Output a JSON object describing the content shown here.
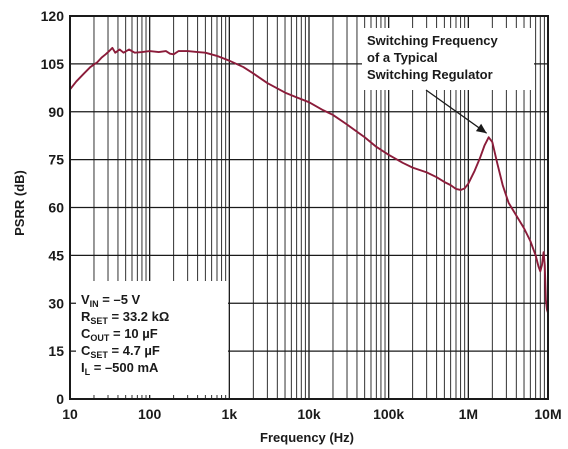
{
  "chart_data": {
    "type": "line",
    "title": "",
    "xlabel": "Frequency (Hz)",
    "ylabel": "PSRR (dB)",
    "xscale": "log",
    "xlim": [
      10,
      10000000
    ],
    "ylim": [
      0,
      120
    ],
    "grid": true,
    "x_ticks": [
      {
        "value": 10,
        "label": "10"
      },
      {
        "value": 100,
        "label": "100"
      },
      {
        "value": 1000,
        "label": "1k"
      },
      {
        "value": 10000,
        "label": "10k"
      },
      {
        "value": 100000,
        "label": "100k"
      },
      {
        "value": 1000000,
        "label": "1M"
      },
      {
        "value": 10000000,
        "label": "10M"
      }
    ],
    "y_ticks": [
      {
        "value": 0,
        "label": "0"
      },
      {
        "value": 15,
        "label": "15"
      },
      {
        "value": 30,
        "label": "30"
      },
      {
        "value": 45,
        "label": "45"
      },
      {
        "value": 60,
        "label": "60"
      },
      {
        "value": 75,
        "label": "75"
      },
      {
        "value": 90,
        "label": "90"
      },
      {
        "value": 105,
        "label": "105"
      },
      {
        "value": 120,
        "label": "120"
      }
    ],
    "series": [
      {
        "color": "#8b1c3a",
        "points": [
          [
            10,
            97
          ],
          [
            12,
            99.5
          ],
          [
            15,
            102
          ],
          [
            18,
            104
          ],
          [
            22,
            105.5
          ],
          [
            25,
            107
          ],
          [
            28,
            108
          ],
          [
            31,
            109
          ],
          [
            34,
            110
          ],
          [
            37,
            108.5
          ],
          [
            42,
            109.5
          ],
          [
            47,
            108.5
          ],
          [
            55,
            109.5
          ],
          [
            65,
            108.5
          ],
          [
            80,
            108.7
          ],
          [
            100,
            109
          ],
          [
            130,
            108.7
          ],
          [
            160,
            109
          ],
          [
            180,
            108.2
          ],
          [
            200,
            108
          ],
          [
            230,
            109
          ],
          [
            300,
            109
          ],
          [
            400,
            108.7
          ],
          [
            500,
            108.5
          ],
          [
            700,
            107.5
          ],
          [
            1000,
            106
          ],
          [
            1500,
            104
          ],
          [
            2000,
            102
          ],
          [
            3000,
            99
          ],
          [
            5000,
            96
          ],
          [
            7000,
            94.5
          ],
          [
            10000,
            93
          ],
          [
            15000,
            90.5
          ],
          [
            20000,
            89
          ],
          [
            30000,
            86
          ],
          [
            50000,
            82
          ],
          [
            70000,
            79
          ],
          [
            100000,
            76.5
          ],
          [
            150000,
            74
          ],
          [
            200000,
            72.5
          ],
          [
            300000,
            71
          ],
          [
            400000,
            69.5
          ],
          [
            500000,
            68
          ],
          [
            600000,
            67
          ],
          [
            700000,
            65.8
          ],
          [
            800000,
            65.5
          ],
          [
            900000,
            66
          ],
          [
            1000000,
            67.5
          ],
          [
            1200000,
            71.5
          ],
          [
            1400000,
            75.5
          ],
          [
            1600000,
            79.5
          ],
          [
            1800000,
            82
          ],
          [
            2000000,
            80.5
          ],
          [
            2300000,
            74
          ],
          [
            2700000,
            67
          ],
          [
            3200000,
            61.5
          ],
          [
            4000000,
            57.5
          ],
          [
            5000000,
            53.5
          ],
          [
            6000000,
            49.5
          ],
          [
            7000000,
            45
          ],
          [
            7600000,
            41.5
          ],
          [
            8000000,
            40
          ],
          [
            8400000,
            42
          ],
          [
            8800000,
            46
          ],
          [
            9100000,
            42
          ],
          [
            9400000,
            31
          ],
          [
            9700000,
            28
          ],
          [
            10000000,
            27
          ]
        ]
      }
    ],
    "annotations": [
      {
        "lines": [
          "Switching Frequency",
          "of a Typical",
          "Switching Regulator"
        ],
        "arrow_to": [
          1800000,
          82
        ]
      }
    ],
    "conditions": [
      {
        "main": "V",
        "sub": "IN",
        "rest": " = –5 V"
      },
      {
        "main": "R",
        "sub": "SET",
        "rest": " = 33.2 kΩ"
      },
      {
        "main": "C",
        "sub": "OUT",
        "rest": " = 10 µF"
      },
      {
        "main": "C",
        "sub": "SET",
        "rest": " = 4.7 µF"
      },
      {
        "main": "I",
        "sub": "L",
        "rest": " = –500 mA"
      }
    ],
    "colors": {
      "line": "#8b1c3a",
      "grid": "#1a1a1a",
      "text": "#1a1a1a",
      "background": "#ffffff"
    }
  }
}
